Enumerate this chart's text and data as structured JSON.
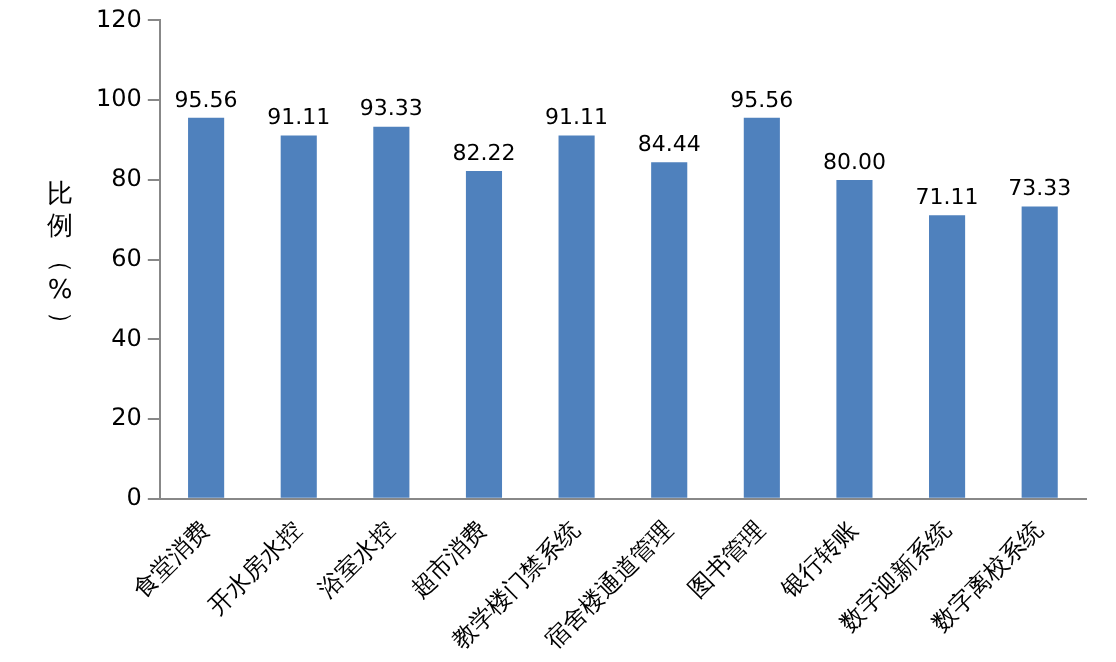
{
  "chart_data": {
    "type": "bar",
    "ylabel": "比例（%）",
    "categories": [
      "食堂消费",
      "开水房水控",
      "浴室水控",
      "超市消费",
      "教学楼门禁系统",
      "宿舍楼通道管理",
      "图书管理",
      "银行转账",
      "数字迎新系统",
      "数字离校系统"
    ],
    "values": [
      95.56,
      91.11,
      93.33,
      82.22,
      91.11,
      84.44,
      95.56,
      80.0,
      71.11,
      73.33
    ],
    "value_labels": [
      "95.56",
      "91.11",
      "93.33",
      "82.22",
      "91.11",
      "84.44",
      "95.56",
      "80.00",
      "71.11",
      "73.33"
    ],
    "color": "#4f81bd",
    "ylim": [
      0,
      120
    ],
    "yticks": [
      0,
      20,
      40,
      60,
      80,
      100,
      120
    ],
    "grid": false,
    "legend": false
  }
}
